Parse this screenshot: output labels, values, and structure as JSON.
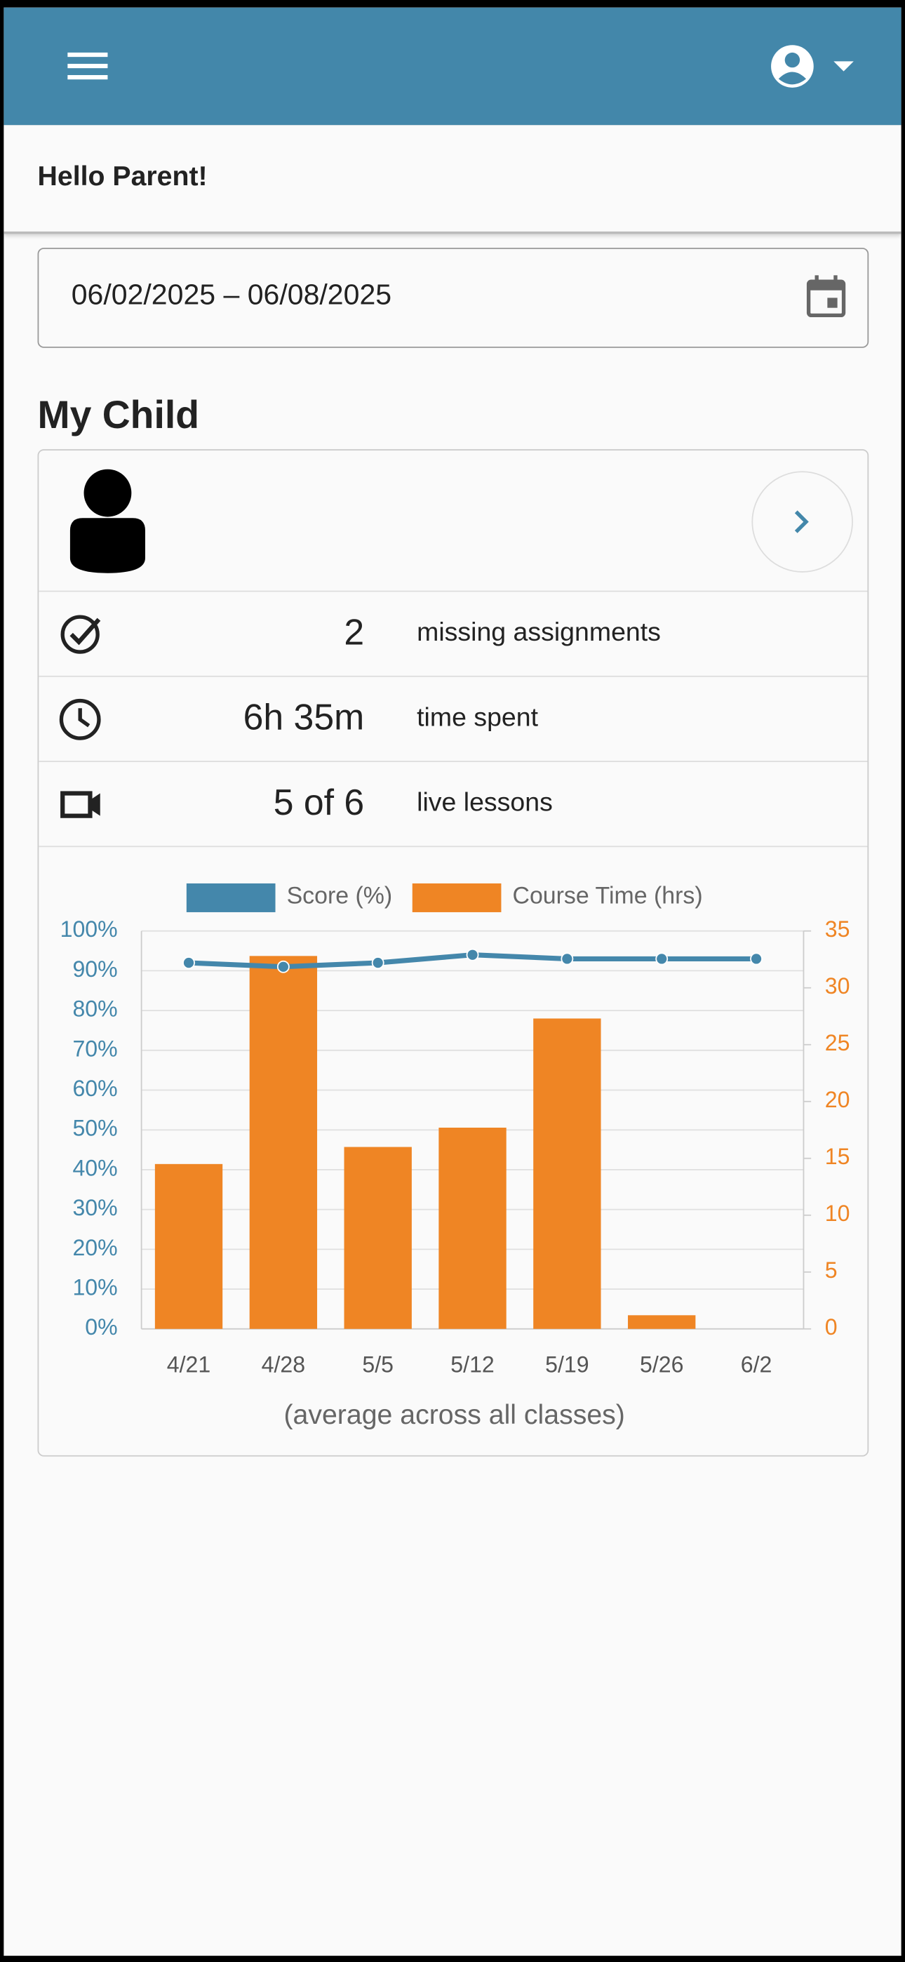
{
  "header": {
    "greeting": "Hello Parent!"
  },
  "date_range": "06/02/2025 – 06/08/2025",
  "section_title": "My Child",
  "stats": [
    {
      "value": "2",
      "label": "missing assignments"
    },
    {
      "value": "6h 35m",
      "label": "time spent"
    },
    {
      "value": "5 of 6",
      "label": "live lessons"
    }
  ],
  "chart_data": {
    "type": "bar-line",
    "x_label": "(average across all classes)",
    "categories": [
      "4/21",
      "4/28",
      "5/5",
      "5/12",
      "5/19",
      "5/26",
      "6/2"
    ],
    "series": [
      {
        "name": "Score (%)",
        "type": "line",
        "color": "#4487ab",
        "values": [
          92,
          91,
          92,
          94,
          93,
          93,
          93
        ]
      },
      {
        "name": "Course Time (hrs)",
        "type": "bar",
        "axis": "y2",
        "color": "#ef8524",
        "values": [
          14.5,
          32.8,
          16,
          17.7,
          27.3,
          1.2,
          0
        ]
      }
    ],
    "ylim": [
      0,
      100
    ],
    "yticks": [
      {
        "value": 0,
        "label": "0%"
      },
      {
        "value": 10,
        "label": "10%"
      },
      {
        "value": 20,
        "label": "20%"
      },
      {
        "value": 30,
        "label": "30%"
      },
      {
        "value": 40,
        "label": "40%"
      },
      {
        "value": 50,
        "label": "50%"
      },
      {
        "value": 60,
        "label": "60%"
      },
      {
        "value": 70,
        "label": "70%"
      },
      {
        "value": 80,
        "label": "80%"
      },
      {
        "value": 90,
        "label": "90%"
      },
      {
        "value": 100,
        "label": "100%"
      }
    ],
    "y2lim": [
      0,
      35
    ],
    "y2ticks": [
      0,
      5,
      10,
      15,
      20,
      25,
      30,
      35
    ],
    "grid": true
  }
}
